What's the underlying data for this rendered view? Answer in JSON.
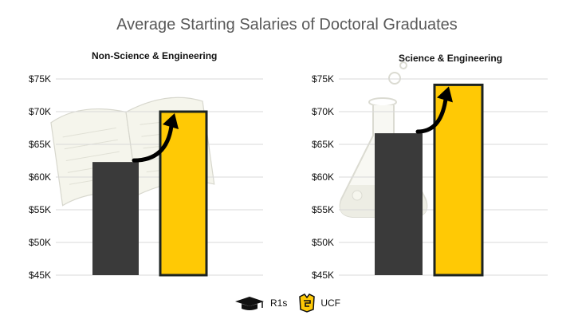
{
  "title": "Average Starting Salaries of Doctoral Graduates",
  "colors": {
    "r1": "#3a3a3a",
    "ucf": "#ffc905",
    "ucf_border": "#1c2321",
    "grid": "#d9d9d9",
    "arrow": "#000000"
  },
  "legend": [
    {
      "label": "R1s",
      "icon": "graduation-cap-icon"
    },
    {
      "label": "UCF",
      "icon": "ucf-pegasus-logo-icon"
    }
  ],
  "chart_data": [
    {
      "type": "bar",
      "title": "Non-Science & Engineering",
      "background_icon": "open-book-icon",
      "categories": [
        "R1s",
        "UCF"
      ],
      "values": [
        62300,
        70000
      ],
      "ylim": [
        45000,
        75000
      ],
      "yticks": [
        45000,
        50000,
        55000,
        60000,
        65000,
        70000,
        75000
      ],
      "ytick_labels": [
        "$45K",
        "$50K",
        "$55K",
        "$60K",
        "$65K",
        "$70K",
        "$75K"
      ],
      "grid": true,
      "xlabel": "",
      "ylabel": ""
    },
    {
      "type": "bar",
      "title": "Science & Engineering",
      "background_icon": "flask-icon",
      "categories": [
        "R1s",
        "UCF"
      ],
      "values": [
        66700,
        74100
      ],
      "ylim": [
        45000,
        75000
      ],
      "yticks": [
        45000,
        50000,
        55000,
        60000,
        65000,
        70000,
        75000
      ],
      "ytick_labels": [
        "$45K",
        "$50K",
        "$55K",
        "$60K",
        "$65K",
        "$70K",
        "$75K"
      ],
      "grid": true,
      "xlabel": "",
      "ylabel": ""
    }
  ]
}
